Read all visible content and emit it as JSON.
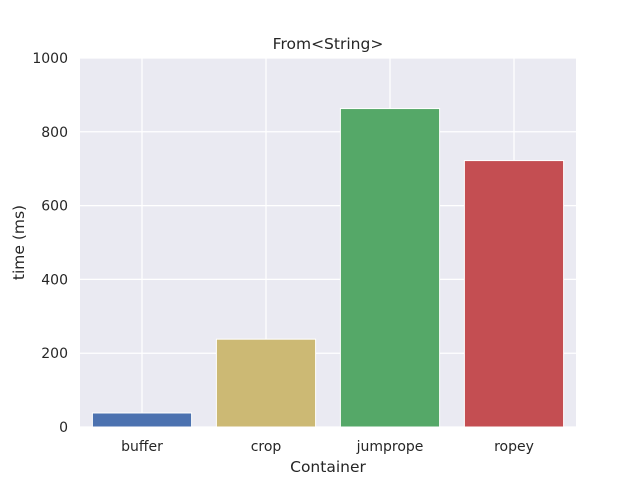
{
  "chart_data": {
    "type": "bar",
    "title": "From<String>",
    "xlabel": "Container",
    "ylabel": "time (ms)",
    "categories": [
      "buffer",
      "crop",
      "jumprope",
      "ropey"
    ],
    "values": [
      38,
      238,
      863,
      722
    ],
    "ylim": [
      0,
      1000
    ],
    "yticks": [
      0,
      200,
      400,
      600,
      800,
      1000
    ],
    "colors": [
      "#4c72b0",
      "#ccb974",
      "#55a868",
      "#c44e52"
    ],
    "grid": true
  }
}
